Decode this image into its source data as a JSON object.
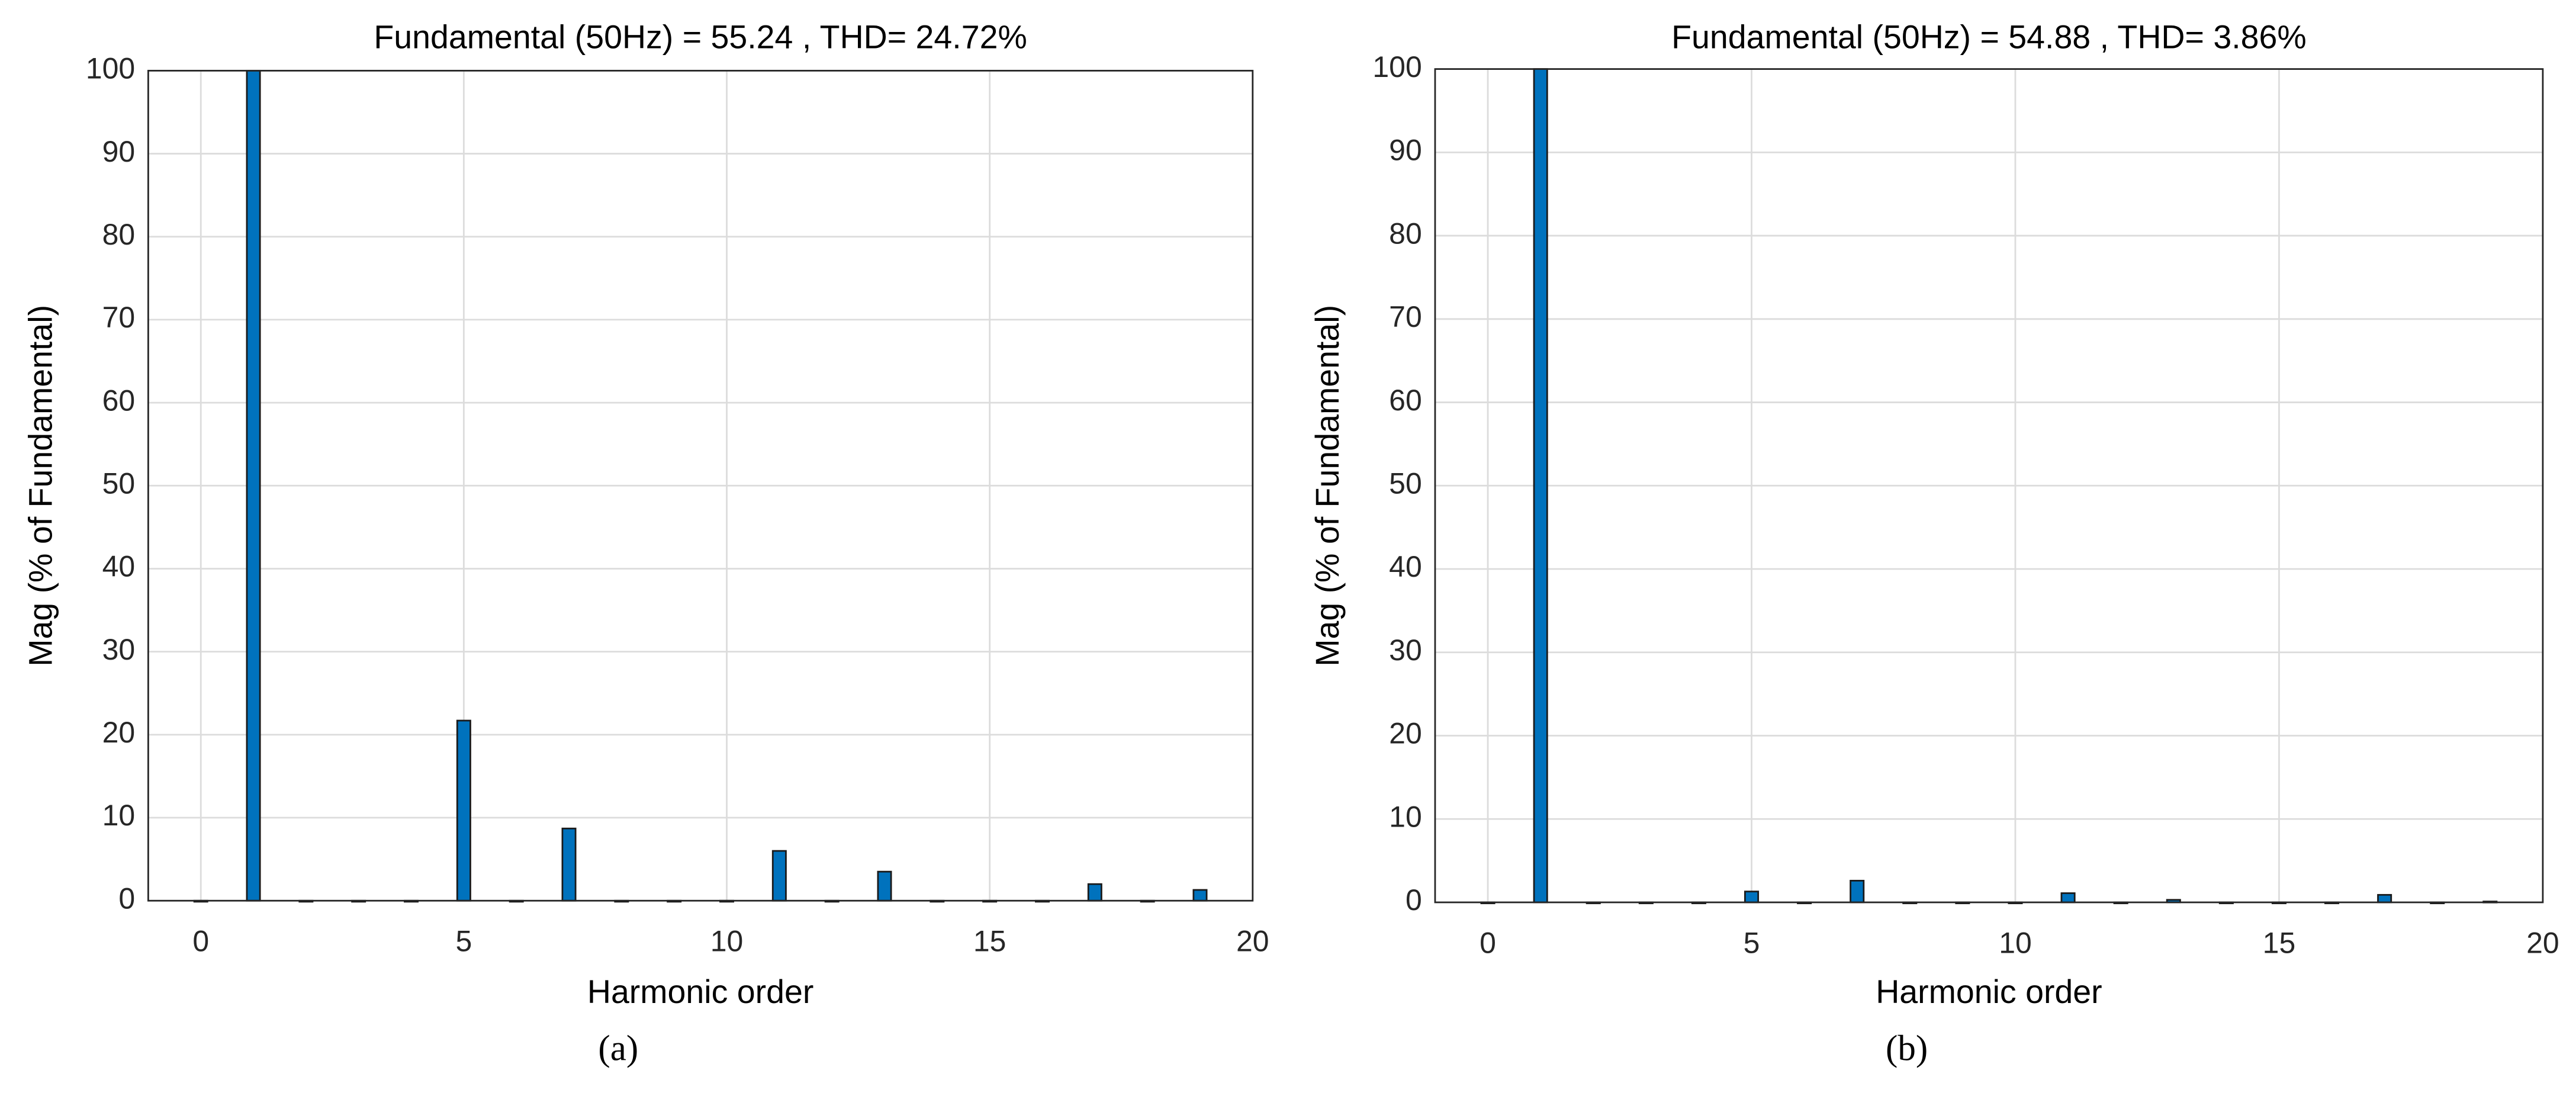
{
  "chart_data": [
    {
      "type": "bar",
      "title": "Fundamental (50Hz) = 55.24 , THD= 24.72%",
      "xlabel": "Harmonic order",
      "ylabel": "Mag (% of Fundamental)",
      "caption": "(a)",
      "x": [
        0,
        1,
        2,
        3,
        4,
        5,
        6,
        7,
        8,
        9,
        10,
        11,
        12,
        13,
        14,
        15,
        16,
        17,
        18,
        19
      ],
      "values": [
        0,
        100,
        0,
        0,
        0,
        21.7,
        0,
        8.7,
        0,
        0,
        0,
        6.0,
        0,
        3.5,
        0,
        0,
        0,
        2.0,
        0,
        1.3
      ],
      "color": "#0072bd",
      "xlim": [
        -1,
        20
      ],
      "xticks": [
        0,
        5,
        10,
        15,
        20
      ],
      "ylim": [
        0,
        100
      ],
      "yticks": [
        0,
        10,
        20,
        30,
        40,
        50,
        60,
        70,
        80,
        90,
        100
      ],
      "grid": true
    },
    {
      "type": "bar",
      "title": "Fundamental (50Hz) = 54.88 , THD= 3.86%",
      "xlabel": "Harmonic order",
      "ylabel": "Mag (% of Fundamental)",
      "caption": "(b)",
      "x": [
        0,
        1,
        2,
        3,
        4,
        5,
        6,
        7,
        8,
        9,
        10,
        11,
        12,
        13,
        14,
        15,
        16,
        17,
        18,
        19
      ],
      "values": [
        0,
        100,
        0,
        0,
        0,
        1.3,
        0,
        2.6,
        0,
        0,
        0,
        1.1,
        0,
        0.3,
        0,
        0,
        0,
        0.9,
        0,
        0.1
      ],
      "color": "#0072bd",
      "xlim": [
        -1,
        20
      ],
      "xticks": [
        0,
        5,
        10,
        15,
        20
      ],
      "ylim": [
        0,
        100
      ],
      "yticks": [
        0,
        10,
        20,
        30,
        40,
        50,
        60,
        70,
        80,
        90,
        100
      ],
      "grid": true
    }
  ]
}
